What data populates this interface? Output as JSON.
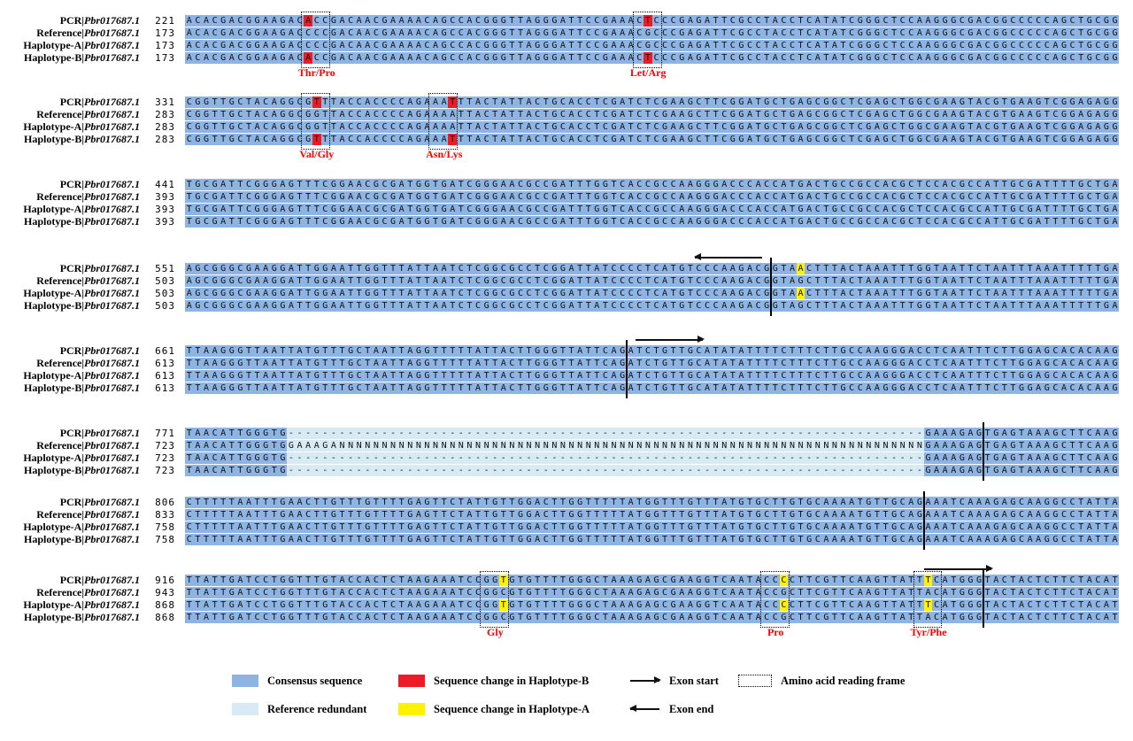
{
  "figure": {
    "accession": "Pbr017687.1",
    "row_labels": [
      "PCR|",
      "Reference|",
      "Haplotype-A|",
      "Haplotype-B|"
    ],
    "colors": {
      "consensus": "#8DB4E2",
      "redundant": "#D8EBF5",
      "hapB_change": "#ED1C24",
      "hapA_change": "#FFF200"
    },
    "blocks": [
      {
        "positions": [
          221,
          173,
          173,
          173
        ],
        "sequences": [
          "ACACGACGGAAGACACCGACAACGAAAACAGCCACGGGTTAGGGATTCCGAAACTCCCGAGATTCGCCTACCTCATATCGGGCTCCAAGGGCGACGGCCCCCAGCTGCGG",
          "ACACGACGGAAGACCCCGACAACGAAAACAGCCACGGGTTAGGGATTCCGAAACGCCCGAGATTCGCCTACCTCATATCGGGCTCCAAGGGCGACGGCCCCCAGCTGCGG",
          "ACACGACGGAAGACCCCGACAACGAAAACAGCCACGGGTTAGGGATTCCGAAACGCCCGAGATTCGCCTACCTCATATCGGGCTCCAAGGGCGACGGCCCCCAGCTGCGG",
          "ACACGACGGAAGACACCGACAACGAAAACAGCCACGGGTTAGGGATTCCGAAACTCCCGAGATTCGCCTACCTCATATCGGGCTCCAAGGGCGACGGCCCCCAGCTGCGG"
        ],
        "highlights": [
          {
            "row": 0,
            "index": 14,
            "color": "hapB_change"
          },
          {
            "row": 3,
            "index": 14,
            "color": "hapB_change"
          },
          {
            "row": 0,
            "index": 54,
            "color": "hapB_change"
          },
          {
            "row": 3,
            "index": 54,
            "color": "hapB_change"
          }
        ],
        "boxes": [
          {
            "start": 14,
            "len": 3,
            "label": "Thr/Pro"
          },
          {
            "start": 53,
            "len": 3,
            "label": "Let/Arg"
          }
        ]
      },
      {
        "positions": [
          331,
          283,
          283,
          283
        ],
        "sequences": [
          "CGGTTGCTACAGGCGTTTACCACCCCAGAAATTTACTATTACTGCACCTCGATCTCGAAGCTTCGGATGCTGAGCGGCTCGAGCTGGCGAAGTACGTGAAGTCGGAGAGG",
          "CGGTTGCTACAGGCGGTTACCACCCCAGAAAATTACTATTACTGCACCTCGATCTCGAAGCTTCGGATGCTGAGCGGCTCGAGCTGGCGAAGTACGTGAAGTCGGAGAGG",
          "CGGTTGCTACAGGCGGTTACCACCCCAGAAAATTACTATTACTGCACCTCGATCTCGAAGCTTCGGATGCTGAGCGGCTCGAGCTGGCGAAGTACGTGAAGTCGGAGAGG",
          "CGGTTGCTACAGGCGTTTACCACCCCAGAAATTTACTATTACTGCACCTCGATCTCGAAGCTTCGGATGCTGAGCGGCTCGAGCTGGCGAAGTACGTGAAGTCGGAGAGG"
        ],
        "highlights": [
          {
            "row": 0,
            "index": 15,
            "color": "hapB_change"
          },
          {
            "row": 3,
            "index": 15,
            "color": "hapB_change"
          },
          {
            "row": 0,
            "index": 31,
            "color": "hapB_change"
          },
          {
            "row": 3,
            "index": 31,
            "color": "hapB_change"
          }
        ],
        "boxes": [
          {
            "start": 14,
            "len": 3,
            "label": "Val/Gly"
          },
          {
            "start": 29,
            "len": 3,
            "label": "Asn/Lys"
          }
        ]
      },
      {
        "positions": [
          441,
          393,
          393,
          393
        ],
        "sequences": [
          "TGCGATTCGGGAGTTTCGGAACGCGATGGTGATCGGGAACGCCGATTTGGTCACCGCCAAGGGACCCACCATGACTGCCGCCACGCTCCACGCCATTGCGATTTTGCTGA",
          "TGCGATTCGGGAGTTTCGGAACGCGATGGTGATCGGGAACGCCGATTTGGTCACCGCCAAGGGACCCACCATGACTGCCGCCACGCTCCACGCCATTGCGATTTTGCTGA",
          "TGCGATTCGGGAGTTTCGGAACGCGATGGTGATCGGGAACGCCGATTTGGTCACCGCCAAGGGACCCACCATGACTGCCGCCACGCTCCACGCCATTGCGATTTTGCTGA",
          "TGCGATTCGGGAGTTTCGGAACGCGATGGTGATCGGGAACGCCGATTTGGTCACCGCCAAGGGACCCACCATGACTGCCGCCACGCTCCACGCCATTGCGATTTTGCTGA"
        ]
      },
      {
        "positions": [
          551,
          503,
          503,
          503
        ],
        "sequences": [
          "AGCGGGCGAAGGATTGGAATTGGTTTATTAATCTCGGCGCCTCGGATTATCCCCTCATGTCCCAAGACGGTAACTTTACTAAATTTGGTAATTCTAATTTAAATTTTTGA",
          "AGCGGGCGAAGGATTGGAATTGGTTTATTAATCTCGGCGCCTCGGATTATCCCCTCATGTCCCAAGACGGTAGCTTTACTAAATTTGGTAATTCTAATTTAAATTTTTGA",
          "AGCGGGCGAAGGATTGGAATTGGTTTATTAATCTCGGCGCCTCGGATTATCCCCTCATGTCCCAAGACGGTAACTTTACTAAATTTGGTAATTCTAATTTAAATTTTTGA",
          "AGCGGGCGAAGGATTGGAATTGGTTTATTAATCTCGGCGCCTCGGATTATCCCCTCATGTCCCAAGACGGTAGCTTTACTAAATTTGGTAATTCTAATTTAAATTTTTGA"
        ],
        "highlights": [
          {
            "row": 0,
            "index": 72,
            "color": "hapA_change"
          },
          {
            "row": 2,
            "index": 72,
            "color": "hapA_change"
          }
        ],
        "bars": [
          69
        ],
        "arrows": [
          {
            "dir": "left",
            "start": 60,
            "end": 68
          }
        ]
      },
      {
        "positions": [
          661,
          613,
          613,
          613
        ],
        "sequences": [
          "TTAAGGGTTAATTATGTTTGCTAATTAGGTTTTTATTACTTGGGTTATTCAGATCTGTTGCATATATTTTCTTTCTTGCCAAGGGACCTCAATTTCTTGGAGCACACAAG",
          "TTAAGGGTTAATTATGTTTGCTAATTAGGTTTTTATTACTTGGGTTATTCAGATCTGTTGCATATATTTTCTTTCTTGCCAAGGGACCTCAATTTCTTGGAGCACACAAG",
          "TTAAGGGTTAATTATGTTTGCTAATTAGGTTTTTATTACTTGGGTTATTCAGATCTGTTGCATATATTTTCTTTCTTGCCAAGGGACCTCAATTTCTTGGAGCACACAAG",
          "TTAAGGGTTAATTATGTTTGCTAATTAGGTTTTTATTACTTGGGTTATTCAGATCTGTTGCATATATTTTCTTTCTTGCCAAGGGACCTCAATTTCTTGGAGCACACAAG"
        ],
        "bars": [
          52
        ],
        "arrows": [
          {
            "dir": "right",
            "start": 53,
            "end": 61
          }
        ]
      },
      {
        "positions": [
          771,
          723,
          723,
          723
        ],
        "sequences": [
          "TAACATTGGGTG---------------------------------------------------------------------------GAAAGAGTGAGTAAAGCTTCAAG",
          "TAACATTGGGTGGAAAGANNNNNNNNNNNNNNNNNNNNNNNNNNNNNNNNNNNNNNNNNNNNNNNNNNNNNNNNNNNNNNNNNNNNNGAAAGAGTGAGTAAAGCTTCAAG",
          "TAACATTGGGTG---------------------------------------------------------------------------GAAAGAGTGAGTAAAGCTTCAAG",
          "TAACATTGGGTG---------------------------------------------------------------------------GAAAGAGTGAGTAAAGCTTCAAG"
        ],
        "redundant": {
          "start": 12,
          "end": 86
        },
        "bars": [
          94
        ]
      },
      {
        "positions": [
          806,
          833,
          758,
          758
        ],
        "sequences": [
          "CTTTTTAATTTGAACTTGTTTGTTTTGAGTTCTATTGTTGGACTTGGTTTTTATGGTTTGTTTATGTGCTTGTGCAAAATGTTGCAGAAATCAAAGAGCAAGGCCTATTA",
          "CTTTTTAATTTGAACTTGTTTGTTTTGAGTTCTATTGTTGGACTTGGTTTTTATGGTTTGTTTATGTGCTTGTGCAAAATGTTGCAGAAATCAAAGAGCAAGGCCTATTA",
          "CTTTTTAATTTGAACTTGTTTGTTTTGAGTTCTATTGTTGGACTTGGTTTTTATGGTTTGTTTATGTGCTTGTGCAAAATGTTGCAGAAATCAAAGAGCAAGGCCTATTA",
          "CTTTTTAATTTGAACTTGTTTGTTTTGAGTTCTATTGTTGGACTTGGTTTTTATGGTTTGTTTATGTGCTTGTGCAAAATGTTGCAGAAATCAAAGAGCAAGGCCTATTA"
        ],
        "bars": [
          87
        ]
      },
      {
        "positions": [
          916,
          943,
          868,
          868
        ],
        "sequences": [
          "TTATTGATCCTGGTTTGTACCACTCTAAGAAATCCGGTGTGTTTTGGGCTAAAGAGCGAAGGTCAATACCCCTTCGTTCAAGTTATTTCATGGGTACTACTCTTCTACAT",
          "TTATTGATCCTGGTTTGTACCACTCTAAGAAATCCGGCGTGTTTTGGGCTAAAGAGCGAAGGTCAATACCGCTTCGTTCAAGTTATTACATGGGTACTACTCTTCTACAT",
          "TTATTGATCCTGGTTTGTACCACTCTAAGAAATCCGGTGTGTTTTGGGCTAAAGAGCGAAGGTCAATACCCCTTCGTTCAAGTTATTTCATGGGTACTACTCTTCTACAT",
          "TTATTGATCCTGGTTTGTACCACTCTAAGAAATCCGGCGTGTTTTGGGCTAAAGAGCGAAGGTCAATACCGCTTCGTTCAAGTTATTACATGGGTACTACTCTTCTACAT"
        ],
        "highlights": [
          {
            "row": 0,
            "index": 37,
            "color": "hapA_change"
          },
          {
            "row": 2,
            "index": 37,
            "color": "hapA_change"
          },
          {
            "row": 0,
            "index": 70,
            "color": "hapA_change"
          },
          {
            "row": 2,
            "index": 70,
            "color": "hapA_change"
          },
          {
            "row": 0,
            "index": 87,
            "color": "hapA_change"
          },
          {
            "row": 2,
            "index": 87,
            "color": "hapA_change"
          }
        ],
        "boxes": [
          {
            "start": 35,
            "len": 3,
            "label": "Gly"
          },
          {
            "start": 68,
            "len": 3,
            "label": "Pro"
          },
          {
            "start": 86,
            "len": 3,
            "label": "Tyr/Phe"
          }
        ],
        "bars": [
          94
        ],
        "arrows": [
          {
            "dir": "right",
            "start": 87,
            "end": 95
          }
        ]
      }
    ],
    "legend": {
      "rows": [
        [
          {
            "type": "swatch",
            "color_key": "consensus",
            "label": "Consensus sequence"
          },
          {
            "type": "swatch",
            "color_key": "hapB_change",
            "label": "Sequence change in Haplotype-B"
          },
          {
            "type": "arrow-right",
            "label": "Exon start"
          },
          {
            "type": "dotted-box",
            "label": "Amino acid reading frame"
          }
        ],
        [
          {
            "type": "swatch",
            "color_key": "redundant",
            "label": "Reference redundant"
          },
          {
            "type": "swatch",
            "color_key": "hapA_change",
            "label": "Sequence change in Haplotype-A"
          },
          {
            "type": "arrow-left",
            "label": "Exon end"
          }
        ]
      ]
    }
  }
}
